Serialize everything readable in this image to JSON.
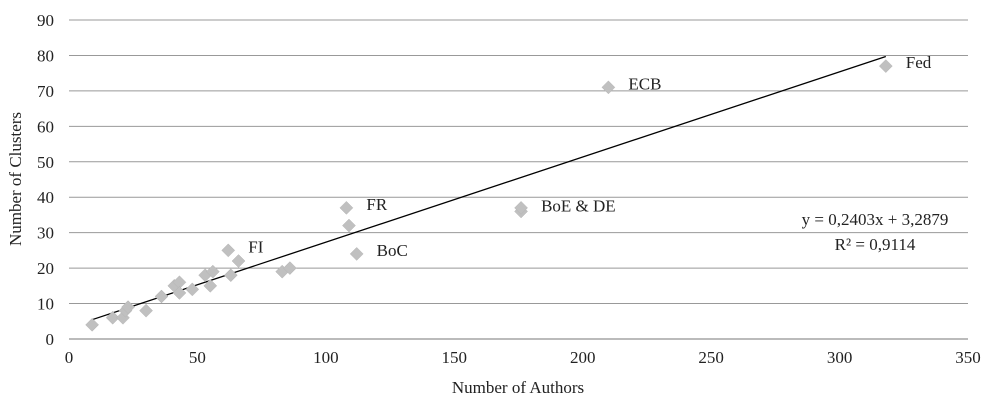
{
  "chart_data": {
    "type": "scatter",
    "xlabel": "Number of Authors",
    "ylabel": "Number of Clusters",
    "xlim": [
      0,
      350
    ],
    "ylim": [
      0,
      90
    ],
    "x_ticks": [
      "0",
      "50",
      "100",
      "150",
      "200",
      "250",
      "300",
      "350"
    ],
    "y_ticks": [
      "0",
      "10",
      "20",
      "30",
      "40",
      "50",
      "60",
      "70",
      "80",
      "90"
    ],
    "grid": "horizontal",
    "marker": "diamond",
    "colors": {
      "points": "#c0c0c0",
      "trendline": "#000000",
      "grid": "#999999"
    },
    "series": [
      {
        "points": [
          {
            "x": 9,
            "y": 4
          },
          {
            "x": 17,
            "y": 6
          },
          {
            "x": 21,
            "y": 6
          },
          {
            "x": 22,
            "y": 8
          },
          {
            "x": 23,
            "y": 9
          },
          {
            "x": 30,
            "y": 8
          },
          {
            "x": 36,
            "y": 12
          },
          {
            "x": 41,
            "y": 15
          },
          {
            "x": 43,
            "y": 16
          },
          {
            "x": 43,
            "y": 13
          },
          {
            "x": 48,
            "y": 14
          },
          {
            "x": 53,
            "y": 18
          },
          {
            "x": 55,
            "y": 15
          },
          {
            "x": 56,
            "y": 19
          },
          {
            "x": 62,
            "y": 25
          },
          {
            "x": 63,
            "y": 18
          },
          {
            "x": 66,
            "y": 22
          },
          {
            "x": 83,
            "y": 19
          },
          {
            "x": 86,
            "y": 20
          },
          {
            "x": 108,
            "y": 37
          },
          {
            "x": 109,
            "y": 32
          },
          {
            "x": 112,
            "y": 24
          },
          {
            "x": 176,
            "y": 36
          },
          {
            "x": 176,
            "y": 37
          },
          {
            "x": 210,
            "y": 71
          },
          {
            "x": 318,
            "y": 77
          }
        ]
      }
    ],
    "annotations": [
      {
        "text": "FI",
        "x": 62,
        "y": 25
      },
      {
        "text": "FR",
        "x": 108,
        "y": 37
      },
      {
        "text": "BoC",
        "x": 112,
        "y": 24
      },
      {
        "text": "BoE & DE",
        "x": 176,
        "y": 36.5
      },
      {
        "text": "ECB",
        "x": 210,
        "y": 71
      },
      {
        "text": "Fed",
        "x": 318,
        "y": 77
      }
    ],
    "trendline": {
      "type": "linear",
      "slope": 0.2403,
      "intercept": 3.2879,
      "x_range": [
        9,
        318
      ],
      "equation": "y = 0,2403x + 3,2879",
      "r_squared": "R² = 0,9114"
    }
  }
}
